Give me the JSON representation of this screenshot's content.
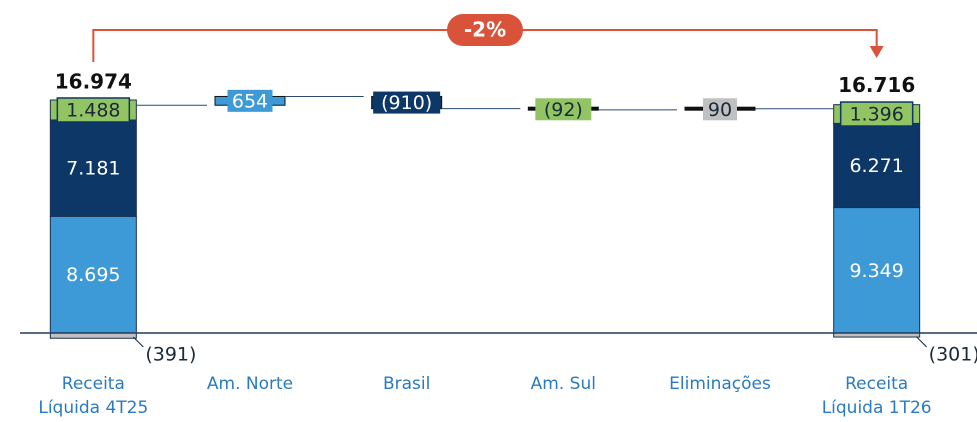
{
  "chart_data": {
    "type": "waterfall",
    "categories": [
      "Receita Líquida 4T25",
      "Am. Norte",
      "Brasil",
      "Am. Sul",
      "Eliminações",
      "Receita Líquida 1T26"
    ],
    "totals": [
      16974,
      null,
      null,
      null,
      null,
      16716
    ],
    "total_labels": [
      "16.974",
      null,
      null,
      null,
      null,
      "16.716"
    ],
    "series": [
      {
        "color": "#3d9ad6",
        "values": [
          8695,
          654,
          null,
          null,
          null,
          9349
        ],
        "value_labels": [
          "8.695",
          "654",
          null,
          null,
          null,
          "9.349"
        ]
      },
      {
        "color": "#0d3766",
        "values": [
          7181,
          null,
          -910,
          null,
          null,
          6271
        ],
        "value_labels": [
          "7.181",
          null,
          "(910)",
          null,
          null,
          "6.271"
        ]
      },
      {
        "color": "#92c464",
        "values": [
          1488,
          null,
          null,
          -92,
          null,
          1396
        ],
        "value_labels": [
          "1.488",
          null,
          null,
          "(92)",
          null,
          "1.396"
        ]
      },
      {
        "color": "#c0c0c0",
        "values": [
          -391,
          null,
          null,
          null,
          90,
          -301
        ],
        "value_labels": [
          "(391)",
          null,
          null,
          null,
          "90",
          "(301)"
        ]
      }
    ],
    "change_label": "-2%",
    "change_color": "#d9533a"
  }
}
